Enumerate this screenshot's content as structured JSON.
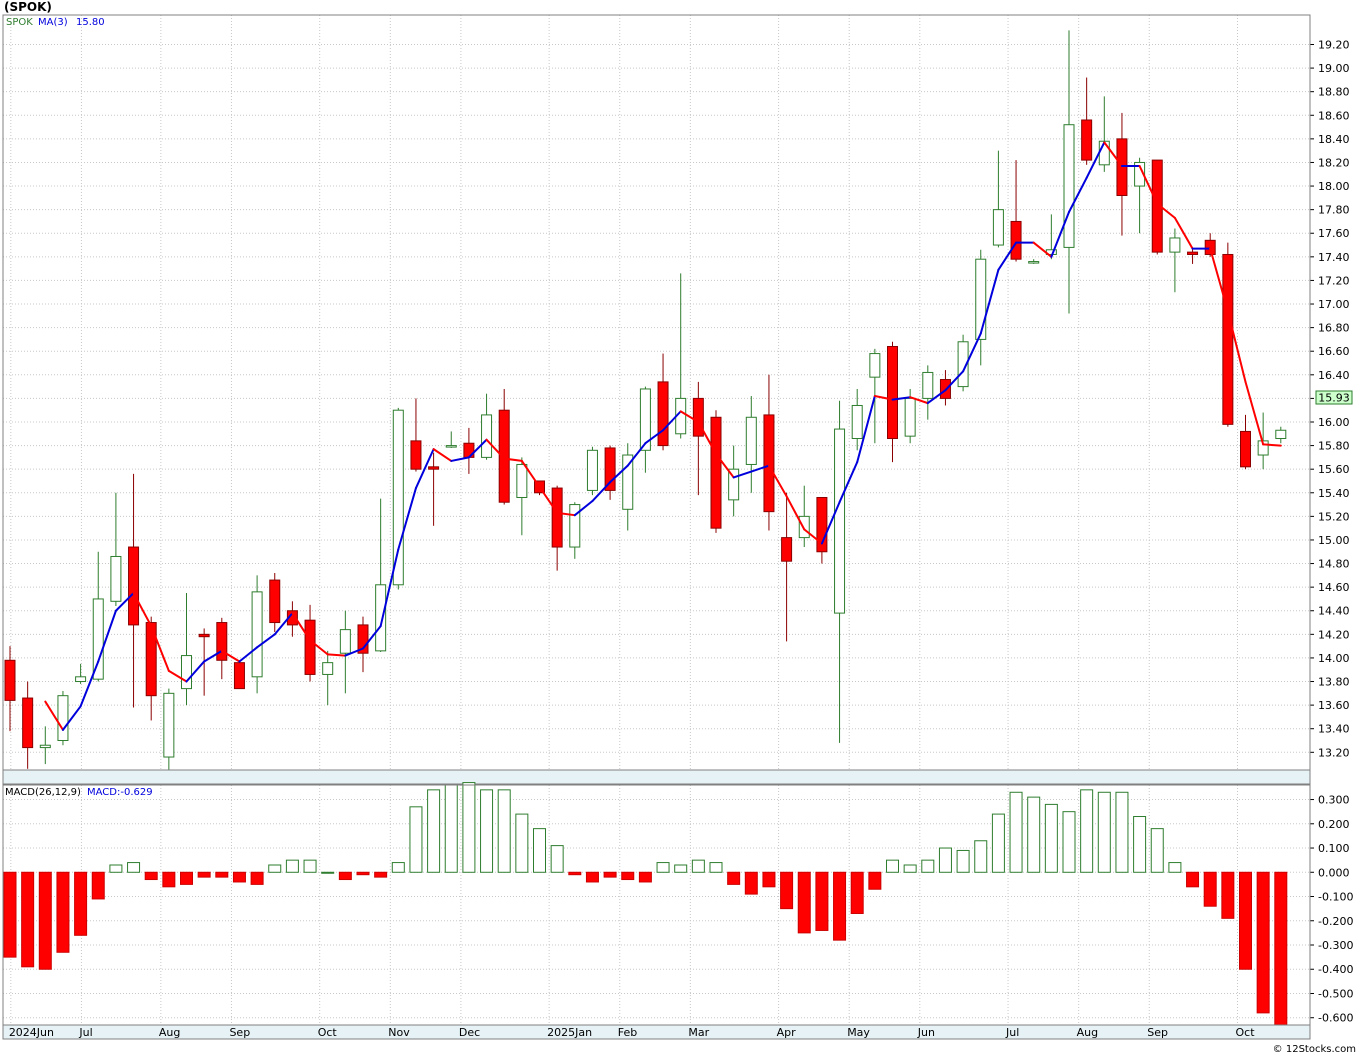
{
  "title": "(SPOK)",
  "watermark": "© 12Stocks.com",
  "price_panel": {
    "legend_symbol": "SPOK",
    "legend_ma": "MA(3)",
    "legend_ma_value": "15.80",
    "last_price_label": "15.93"
  },
  "macd_panel": {
    "legend_label": "MACD(26,12,9)",
    "legend_value": "MACD:-0.629"
  },
  "colors": {
    "up_candle": "#2e7d2e",
    "down_candle": "#ff0000",
    "ma_up": "#0000dd",
    "ma_down": "#ff0000",
    "macd_positive": "#2e7d2e",
    "macd_negative": "#ff0000",
    "last_price_bg": "#ccffcc"
  },
  "chart_data": [
    {
      "type": "candlestick",
      "series_name": "SPOK",
      "ylim": [
        13.05,
        19.45
      ],
      "y_ticks": [
        "13.20",
        "13.40",
        "13.60",
        "13.80",
        "14.00",
        "14.20",
        "14.40",
        "14.60",
        "14.80",
        "15.00",
        "15.20",
        "15.40",
        "15.60",
        "15.80",
        "16.00",
        "16.20",
        "16.40",
        "16.60",
        "16.80",
        "17.00",
        "17.20",
        "17.40",
        "17.60",
        "17.80",
        "18.00",
        "18.20",
        "18.40",
        "18.60",
        "18.80",
        "19.00",
        "19.20"
      ],
      "x_labels": [
        {
          "label": "2024Jun",
          "week": 0.5
        },
        {
          "label": "Jul",
          "week": 4.5
        },
        {
          "label": "Aug",
          "week": 9
        },
        {
          "label": "Sep",
          "week": 13
        },
        {
          "label": "Oct",
          "week": 18
        },
        {
          "label": "Nov",
          "week": 22
        },
        {
          "label": "Dec",
          "week": 26
        },
        {
          "label": "2025Jan",
          "week": 31
        },
        {
          "label": "Feb",
          "week": 35
        },
        {
          "label": "Mar",
          "week": 39
        },
        {
          "label": "Apr",
          "week": 44
        },
        {
          "label": "May",
          "week": 48
        },
        {
          "label": "Jun",
          "week": 52
        },
        {
          "label": "Jul",
          "week": 57
        },
        {
          "label": "Aug",
          "week": 61
        },
        {
          "label": "Sep",
          "week": 65
        },
        {
          "label": "Oct",
          "week": 70
        }
      ],
      "candles": [
        {
          "o": 13.98,
          "h": 14.1,
          "l": 13.38,
          "c": 13.64
        },
        {
          "o": 13.66,
          "h": 13.8,
          "l": 13.06,
          "c": 13.24
        },
        {
          "o": 13.24,
          "h": 13.42,
          "l": 13.1,
          "c": 13.26
        },
        {
          "o": 13.3,
          "h": 13.72,
          "l": 13.26,
          "c": 13.68
        },
        {
          "o": 13.8,
          "h": 13.95,
          "l": 13.78,
          "c": 13.84
        },
        {
          "o": 13.82,
          "h": 14.9,
          "l": 13.8,
          "c": 14.5
        },
        {
          "o": 14.48,
          "h": 15.4,
          "l": 14.44,
          "c": 14.86
        },
        {
          "o": 14.94,
          "h": 15.56,
          "l": 13.58,
          "c": 14.28
        },
        {
          "o": 14.3,
          "h": 14.35,
          "l": 13.47,
          "c": 13.68
        },
        {
          "o": 13.16,
          "h": 13.74,
          "l": 13.05,
          "c": 13.7
        },
        {
          "o": 13.74,
          "h": 14.55,
          "l": 13.6,
          "c": 14.02
        },
        {
          "o": 14.2,
          "h": 14.25,
          "l": 13.68,
          "c": 14.18
        },
        {
          "o": 14.3,
          "h": 14.34,
          "l": 13.82,
          "c": 13.98
        },
        {
          "o": 13.96,
          "h": 13.98,
          "l": 13.74,
          "c": 13.74
        },
        {
          "o": 13.84,
          "h": 14.7,
          "l": 13.7,
          "c": 14.56
        },
        {
          "o": 14.66,
          "h": 14.72,
          "l": 14.22,
          "c": 14.3
        },
        {
          "o": 14.4,
          "h": 14.48,
          "l": 14.18,
          "c": 14.28
        },
        {
          "o": 14.32,
          "h": 14.45,
          "l": 13.8,
          "c": 13.86
        },
        {
          "o": 13.86,
          "h": 14.06,
          "l": 13.6,
          "c": 13.96
        },
        {
          "o": 14.04,
          "h": 14.4,
          "l": 13.7,
          "c": 14.24
        },
        {
          "o": 14.28,
          "h": 14.35,
          "l": 13.88,
          "c": 14.04
        },
        {
          "o": 14.06,
          "h": 15.35,
          "l": 14.05,
          "c": 14.62
        },
        {
          "o": 14.62,
          "h": 16.12,
          "l": 14.58,
          "c": 16.1
        },
        {
          "o": 15.84,
          "h": 16.2,
          "l": 15.58,
          "c": 15.6
        },
        {
          "o": 15.62,
          "h": 15.74,
          "l": 15.12,
          "c": 15.6
        },
        {
          "o": 15.8,
          "h": 15.92,
          "l": 15.78,
          "c": 15.8
        },
        {
          "o": 15.82,
          "h": 15.95,
          "l": 15.56,
          "c": 15.7
        },
        {
          "o": 15.7,
          "h": 16.24,
          "l": 15.68,
          "c": 16.06
        },
        {
          "o": 16.1,
          "h": 16.28,
          "l": 15.3,
          "c": 15.32
        },
        {
          "o": 15.36,
          "h": 15.7,
          "l": 15.04,
          "c": 15.64
        },
        {
          "o": 15.5,
          "h": 15.5,
          "l": 15.38,
          "c": 15.4
        },
        {
          "o": 15.44,
          "h": 15.46,
          "l": 14.74,
          "c": 14.94
        },
        {
          "o": 14.94,
          "h": 15.32,
          "l": 14.84,
          "c": 15.3
        },
        {
          "o": 15.42,
          "h": 15.79,
          "l": 15.38,
          "c": 15.76
        },
        {
          "o": 15.78,
          "h": 15.8,
          "l": 15.34,
          "c": 15.42
        },
        {
          "o": 15.26,
          "h": 15.82,
          "l": 15.08,
          "c": 15.72
        },
        {
          "o": 15.76,
          "h": 16.3,
          "l": 15.57,
          "c": 16.28
        },
        {
          "o": 16.34,
          "h": 16.58,
          "l": 15.76,
          "c": 15.8
        },
        {
          "o": 15.9,
          "h": 17.26,
          "l": 15.86,
          "c": 16.2
        },
        {
          "o": 16.2,
          "h": 16.34,
          "l": 15.38,
          "c": 15.88
        },
        {
          "o": 16.04,
          "h": 16.1,
          "l": 15.06,
          "c": 15.1
        },
        {
          "o": 15.34,
          "h": 15.8,
          "l": 15.2,
          "c": 15.6
        },
        {
          "o": 15.64,
          "h": 16.22,
          "l": 15.4,
          "c": 16.04
        },
        {
          "o": 16.06,
          "h": 16.4,
          "l": 15.08,
          "c": 15.24
        },
        {
          "o": 15.02,
          "h": 15.4,
          "l": 14.14,
          "c": 14.82
        },
        {
          "o": 15.02,
          "h": 15.46,
          "l": 14.94,
          "c": 15.2
        },
        {
          "o": 15.36,
          "h": 15.36,
          "l": 14.8,
          "c": 14.9
        },
        {
          "o": 14.38,
          "h": 16.18,
          "l": 13.28,
          "c": 15.94
        },
        {
          "o": 15.86,
          "h": 16.28,
          "l": 15.76,
          "c": 16.14
        },
        {
          "o": 16.38,
          "h": 16.62,
          "l": 15.82,
          "c": 16.58
        },
        {
          "o": 16.64,
          "h": 16.68,
          "l": 15.66,
          "c": 15.86
        },
        {
          "o": 15.88,
          "h": 16.28,
          "l": 15.82,
          "c": 16.2
        },
        {
          "o": 16.2,
          "h": 16.48,
          "l": 16.02,
          "c": 16.42
        },
        {
          "o": 16.36,
          "h": 16.44,
          "l": 16.14,
          "c": 16.2
        },
        {
          "o": 16.3,
          "h": 16.74,
          "l": 16.26,
          "c": 16.68
        },
        {
          "o": 16.7,
          "h": 17.46,
          "l": 16.48,
          "c": 17.38
        },
        {
          "o": 17.5,
          "h": 18.3,
          "l": 17.48,
          "c": 17.8
        },
        {
          "o": 17.7,
          "h": 18.22,
          "l": 17.36,
          "c": 17.38
        },
        {
          "o": 17.36,
          "h": 17.38,
          "l": 17.34,
          "c": 17.36
        },
        {
          "o": 17.42,
          "h": 17.76,
          "l": 17.38,
          "c": 17.46
        },
        {
          "o": 17.48,
          "h": 19.32,
          "l": 16.92,
          "c": 18.52
        },
        {
          "o": 18.56,
          "h": 18.92,
          "l": 18.18,
          "c": 18.22
        },
        {
          "o": 18.18,
          "h": 18.76,
          "l": 18.12,
          "c": 18.38
        },
        {
          "o": 18.4,
          "h": 18.62,
          "l": 17.58,
          "c": 17.92
        },
        {
          "o": 18.0,
          "h": 18.24,
          "l": 17.6,
          "c": 18.2
        },
        {
          "o": 18.22,
          "h": 18.22,
          "l": 17.42,
          "c": 17.44
        },
        {
          "o": 17.44,
          "h": 17.64,
          "l": 17.1,
          "c": 17.56
        },
        {
          "o": 17.44,
          "h": 17.48,
          "l": 17.34,
          "c": 17.42
        },
        {
          "o": 17.54,
          "h": 17.6,
          "l": 17.4,
          "c": 17.42
        },
        {
          "o": 17.42,
          "h": 17.52,
          "l": 15.96,
          "c": 15.98
        },
        {
          "o": 15.92,
          "h": 16.06,
          "l": 15.6,
          "c": 15.62
        },
        {
          "o": 15.72,
          "h": 16.08,
          "l": 15.6,
          "c": 15.84
        },
        {
          "o": 15.86,
          "h": 15.96,
          "l": 15.82,
          "c": 15.93
        }
      ],
      "ma3": [
        null,
        null,
        13.63,
        13.39,
        13.59,
        13.97,
        14.4,
        14.55,
        14.27,
        13.89,
        13.8,
        13.97,
        14.06,
        13.97,
        14.09,
        14.2,
        14.38,
        14.15,
        14.03,
        14.02,
        14.08,
        14.27,
        14.92,
        15.44,
        15.77,
        15.67,
        15.7,
        15.85,
        15.69,
        15.67,
        15.45,
        15.23,
        15.21,
        15.33,
        15.49,
        15.63,
        15.82,
        15.93,
        16.09,
        16.0,
        15.73,
        15.53,
        15.58,
        15.63,
        15.37,
        15.09,
        14.97,
        15.32,
        15.66,
        16.22,
        16.19,
        16.21,
        16.16,
        16.27,
        16.43,
        16.75,
        17.29,
        17.52,
        17.52,
        17.4,
        17.78,
        18.07,
        18.37,
        18.17,
        18.17,
        17.85,
        17.73,
        17.47,
        17.47,
        16.94,
        16.34,
        15.81,
        15.8
      ]
    },
    {
      "type": "bar",
      "series_name": "MACD(26,12,9)",
      "ylim": [
        -0.63,
        0.36
      ],
      "y_ticks": [
        "0.300",
        "0.200",
        "0.100",
        "0.000",
        "-0.100",
        "-0.200",
        "-0.300",
        "-0.400",
        "-0.500",
        "-0.600"
      ],
      "values": [
        -0.35,
        -0.39,
        -0.4,
        -0.33,
        -0.26,
        -0.11,
        0.03,
        0.04,
        -0.03,
        -0.06,
        -0.05,
        -0.02,
        -0.02,
        -0.04,
        -0.05,
        0.03,
        0.05,
        0.05,
        0.0,
        -0.03,
        -0.01,
        -0.02,
        0.04,
        0.27,
        0.34,
        0.36,
        0.37,
        0.34,
        0.34,
        0.24,
        0.18,
        0.11,
        -0.01,
        -0.04,
        -0.02,
        -0.03,
        -0.04,
        0.04,
        0.03,
        0.05,
        0.04,
        -0.05,
        -0.09,
        -0.06,
        -0.15,
        -0.25,
        -0.24,
        -0.28,
        -0.17,
        -0.07,
        0.05,
        0.03,
        0.05,
        0.1,
        0.09,
        0.13,
        0.24,
        0.33,
        0.31,
        0.28,
        0.25,
        0.34,
        0.33,
        0.33,
        0.23,
        0.18,
        0.04,
        -0.06,
        -0.14,
        -0.19,
        -0.4,
        -0.58,
        -0.63
      ]
    }
  ]
}
